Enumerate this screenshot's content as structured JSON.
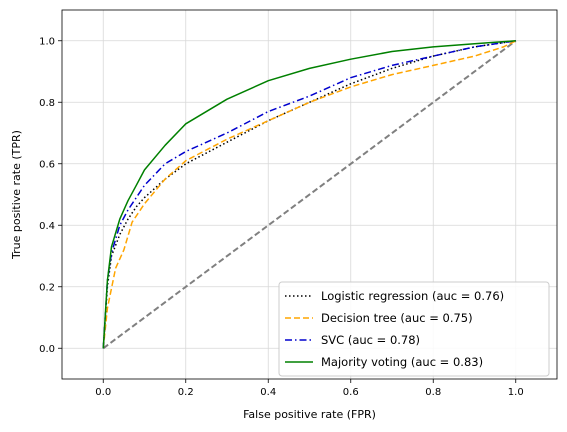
{
  "chart_data": {
    "type": "line",
    "title": "",
    "xlabel": "False positive rate (FPR)",
    "ylabel": "True positive rate (TPR)",
    "xlim": [
      -0.1,
      1.1
    ],
    "ylim": [
      -0.1,
      1.1
    ],
    "xticks": [
      0.0,
      0.2,
      0.4,
      0.6,
      0.8,
      1.0
    ],
    "yticks": [
      0.0,
      0.2,
      0.4,
      0.6,
      0.8,
      1.0
    ],
    "xtick_labels": [
      "0.0",
      "0.2",
      "0.4",
      "0.6",
      "0.8",
      "1.0"
    ],
    "ytick_labels": [
      "0.0",
      "0.2",
      "0.4",
      "0.6",
      "0.8",
      "1.0"
    ],
    "grid": true,
    "legend_position": "lower-right",
    "series": [
      {
        "name": "Logistic regression (auc = 0.76)",
        "color": "#000000",
        "linestyle": "dotted",
        "x": [
          0.0,
          0.01,
          0.02,
          0.04,
          0.06,
          0.08,
          0.1,
          0.15,
          0.2,
          0.3,
          0.4,
          0.5,
          0.6,
          0.7,
          0.8,
          0.9,
          1.0
        ],
        "y": [
          0.0,
          0.2,
          0.3,
          0.37,
          0.42,
          0.46,
          0.49,
          0.55,
          0.6,
          0.67,
          0.74,
          0.8,
          0.86,
          0.91,
          0.95,
          0.98,
          1.0
        ]
      },
      {
        "name": "Decision tree (auc = 0.75)",
        "color": "#ffa500",
        "linestyle": "dashed",
        "x": [
          0.0,
          0.01,
          0.03,
          0.05,
          0.07,
          0.1,
          0.15,
          0.2,
          0.3,
          0.4,
          0.5,
          0.6,
          0.7,
          0.8,
          0.9,
          0.97,
          1.0
        ],
        "y": [
          0.0,
          0.13,
          0.26,
          0.32,
          0.41,
          0.47,
          0.55,
          0.61,
          0.68,
          0.74,
          0.8,
          0.85,
          0.89,
          0.92,
          0.95,
          0.98,
          1.0
        ]
      },
      {
        "name": "SVC (auc = 0.78)",
        "color": "#0000cd",
        "linestyle": "dashdot",
        "x": [
          0.0,
          0.01,
          0.02,
          0.04,
          0.06,
          0.08,
          0.1,
          0.15,
          0.2,
          0.3,
          0.4,
          0.5,
          0.6,
          0.7,
          0.8,
          0.9,
          1.0
        ],
        "y": [
          0.0,
          0.22,
          0.31,
          0.4,
          0.45,
          0.49,
          0.53,
          0.6,
          0.64,
          0.7,
          0.77,
          0.82,
          0.88,
          0.92,
          0.95,
          0.98,
          1.0
        ]
      },
      {
        "name": "Majority voting (auc = 0.83)",
        "color": "#008000",
        "linestyle": "solid",
        "x": [
          0.0,
          0.01,
          0.02,
          0.04,
          0.06,
          0.08,
          0.1,
          0.15,
          0.2,
          0.3,
          0.4,
          0.5,
          0.6,
          0.7,
          0.8,
          0.9,
          1.0
        ],
        "y": [
          0.0,
          0.22,
          0.33,
          0.42,
          0.48,
          0.53,
          0.58,
          0.66,
          0.73,
          0.81,
          0.87,
          0.91,
          0.94,
          0.965,
          0.98,
          0.99,
          1.0
        ]
      },
      {
        "name": "",
        "color": "#808080",
        "linestyle": "dashed",
        "x": [
          0.0,
          1.0
        ],
        "y": [
          0.0,
          1.0
        ]
      }
    ]
  }
}
